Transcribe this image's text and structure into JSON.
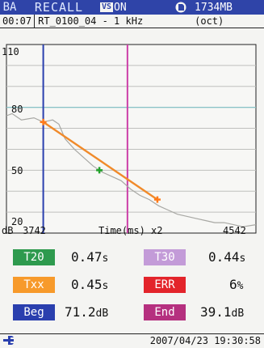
{
  "header": {
    "mode": "BA",
    "screen": "RECALL",
    "vs_label": "VS",
    "vs_state": "ON",
    "memory": "1734MB",
    "card_icon": "memory-card-icon"
  },
  "info": {
    "elapsed": "00:07",
    "file": "RT_0100_04 - 1 kHz",
    "band": "(oct)"
  },
  "chart_data": {
    "type": "line",
    "xlabel": "Time(ms) x2",
    "ylabel": "dB",
    "x_range": [
      3742,
      4542
    ],
    "xlim_labels": [
      "3742",
      "4542"
    ],
    "ylim": [
      20,
      110
    ],
    "ytick_labels": [
      "110",
      "80",
      "50",
      "20"
    ],
    "grid": true,
    "series": [
      {
        "x": [
          3742,
          3760,
          3790,
          3830,
          3860,
          3890,
          3910,
          3930,
          3960,
          3990,
          4020,
          4050,
          4080,
          4110,
          4140,
          4170,
          4200,
          4230,
          4260,
          4290,
          4320,
          4350,
          4380,
          4410,
          4440,
          4470,
          4500,
          4542
        ],
        "y": [
          76,
          77,
          74,
          75,
          73,
          74,
          72,
          65,
          60,
          56,
          52,
          49,
          47,
          45,
          41,
          38,
          36,
          33,
          31,
          29,
          28,
          27,
          26,
          25,
          25,
          24,
          23,
          24
        ]
      }
    ],
    "regression": {
      "x": [
        3860,
        4226
      ],
      "y": [
        73,
        36
      ]
    },
    "markers": [
      {
        "x": 3860,
        "y": 73,
        "color": "#ff7a1a"
      },
      {
        "x": 4040,
        "y": 50,
        "color": "#22a22a"
      },
      {
        "x": 4226,
        "y": 36,
        "color": "#ff7a1a"
      }
    ],
    "cursors": [
      {
        "x": 3860,
        "color": "#2a3fae"
      },
      {
        "x": 4130,
        "color": "#cc3fa8"
      }
    ],
    "reference_level": 80
  },
  "results": {
    "t20": {
      "label": "T20",
      "value": "0.47",
      "unit": "s",
      "color": "#2e9a4e"
    },
    "t30": {
      "label": "T30",
      "value": "0.44",
      "unit": "s",
      "color": "#c39bd8"
    },
    "txx": {
      "label": "Txx",
      "value": "0.45",
      "unit": "s",
      "color": "#f79a2b"
    },
    "err": {
      "label": "ERR",
      "value": "6",
      "unit": "%",
      "color": "#e3242b"
    },
    "beg": {
      "label": "Beg",
      "value": "71.2",
      "unit": "dB",
      "color": "#2a3fae"
    },
    "end": {
      "label": "End",
      "value": "39.1",
      "unit": "dB",
      "color": "#b5307f"
    }
  },
  "footer": {
    "datetime": "2007/04/23 19:30:58",
    "icon": "power-plug-icon"
  }
}
